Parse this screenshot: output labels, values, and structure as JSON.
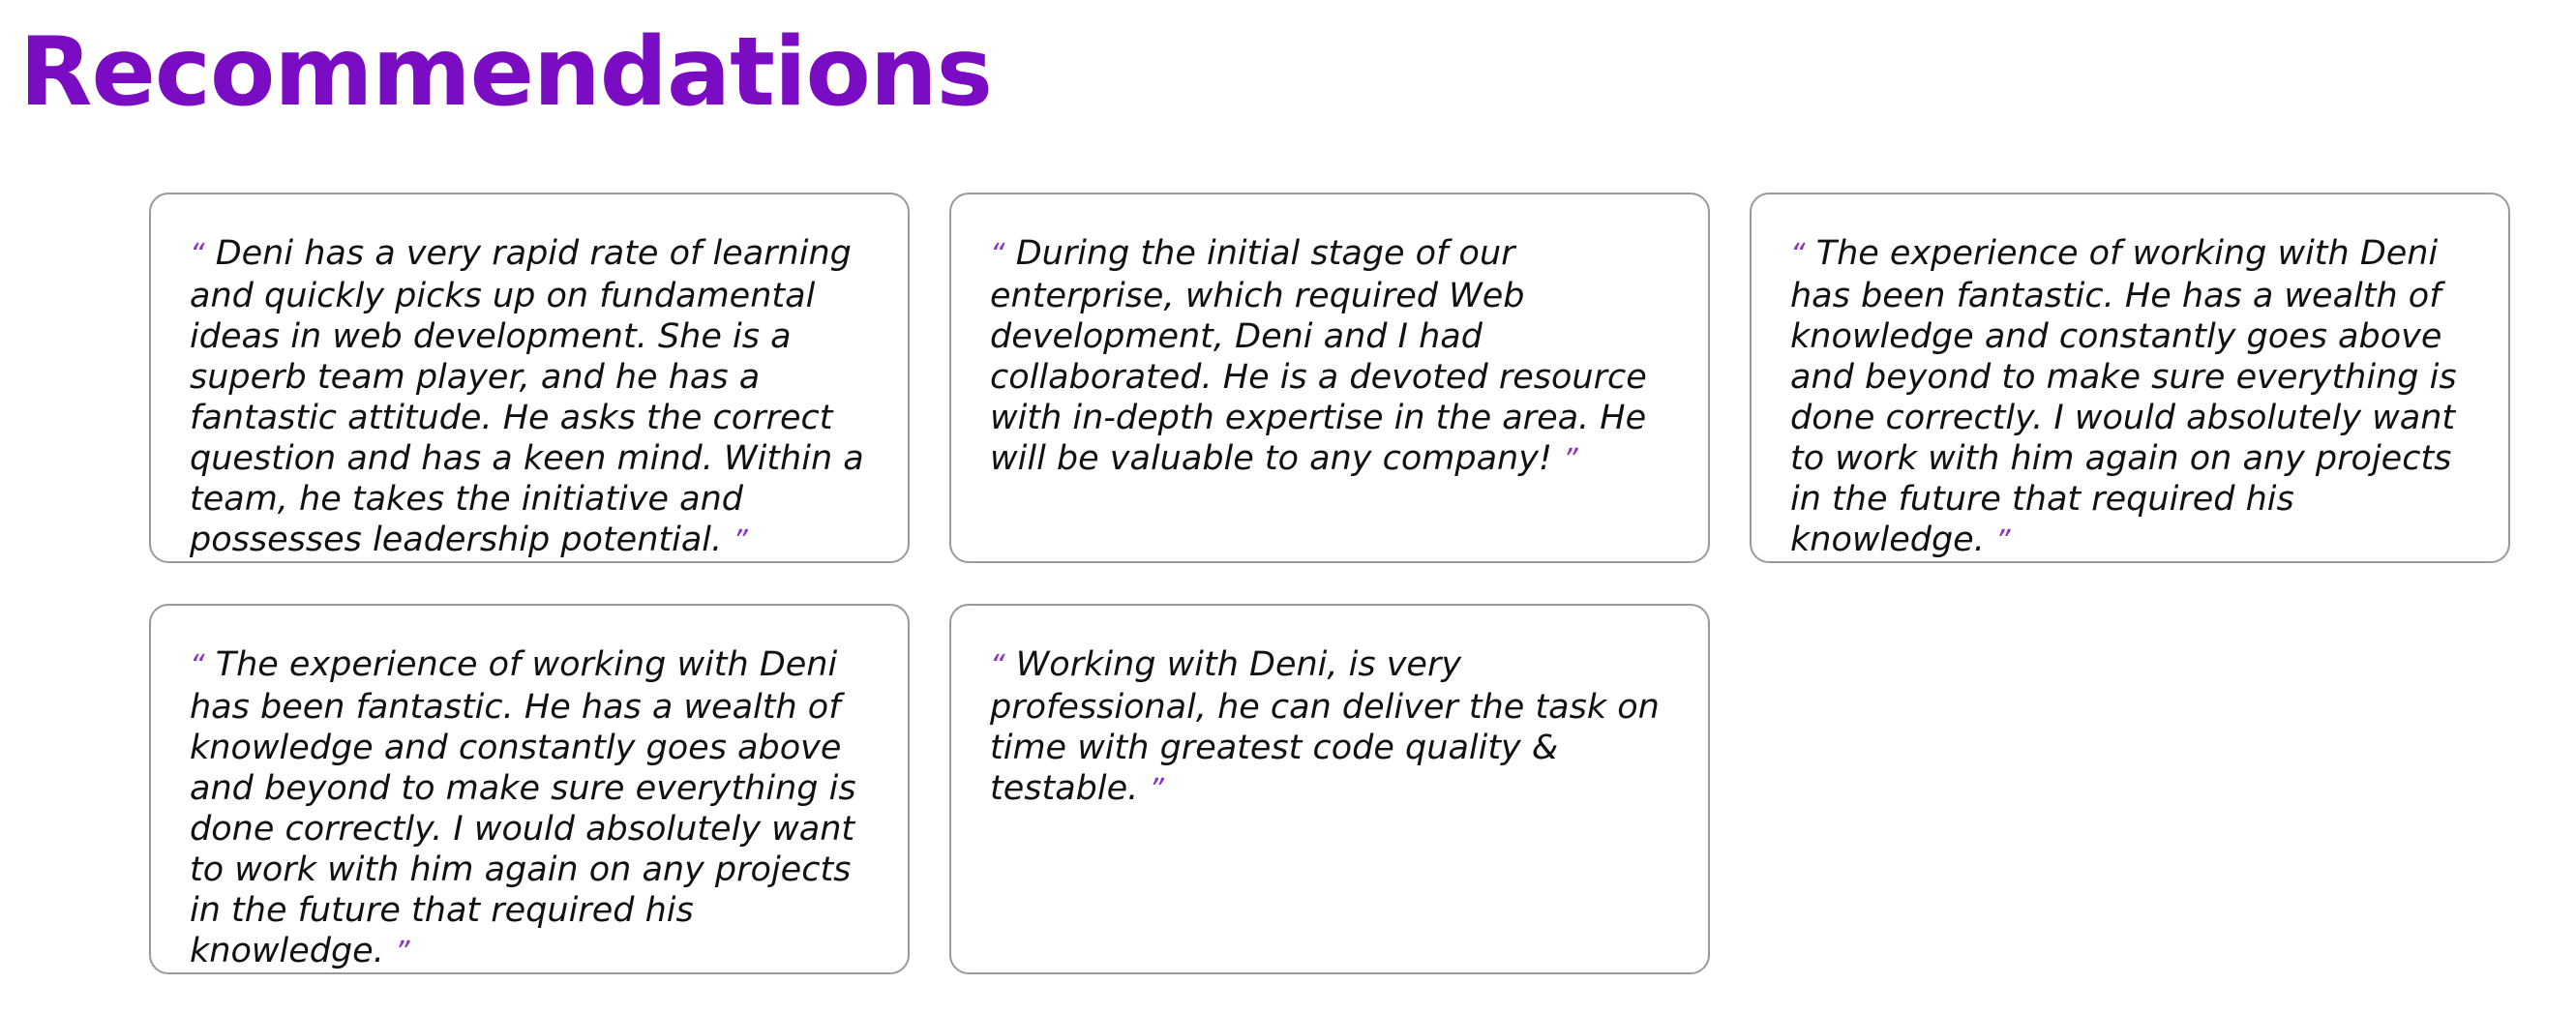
{
  "page": {
    "title": "Recommendations",
    "accent_color": "#7a0cc4"
  },
  "recommendations": [
    {
      "open_quote": "“",
      "text": "Deni has a very rapid rate of learning and quickly picks up on fundamental ideas in web development. She is a superb team player, and he has a fantastic attitude. He asks the correct question and has a keen mind. Within a team, he takes the initiative and possesses leadership potential.",
      "close_quote": "”"
    },
    {
      "open_quote": "“",
      "text": "During the initial stage of our enterprise, which required Web development, Deni and I had collaborated. He is a devoted resource with in-depth expertise in the area. He will be valuable to any company!",
      "close_quote": "”"
    },
    {
      "open_quote": "“",
      "text": "The experience of working with Deni has been fantastic. He has a wealth of knowledge and constantly goes above and beyond to make sure everything is done correctly. I would absolutely want to work with him again on any projects in the future that required his knowledge.",
      "close_quote": "”"
    },
    {
      "open_quote": "“",
      "text": "The experience of working with Deni has been fantastic. He has a wealth of knowledge and constantly goes above and beyond to make sure everything is done correctly. I would absolutely want to work with him again on any projects in the future that required his knowledge.",
      "close_quote": "”"
    },
    {
      "open_quote": "“",
      "text": "Working with Deni, is very professional, he can deliver the task on time with greatest code quality & testable.",
      "close_quote": "”"
    }
  ]
}
